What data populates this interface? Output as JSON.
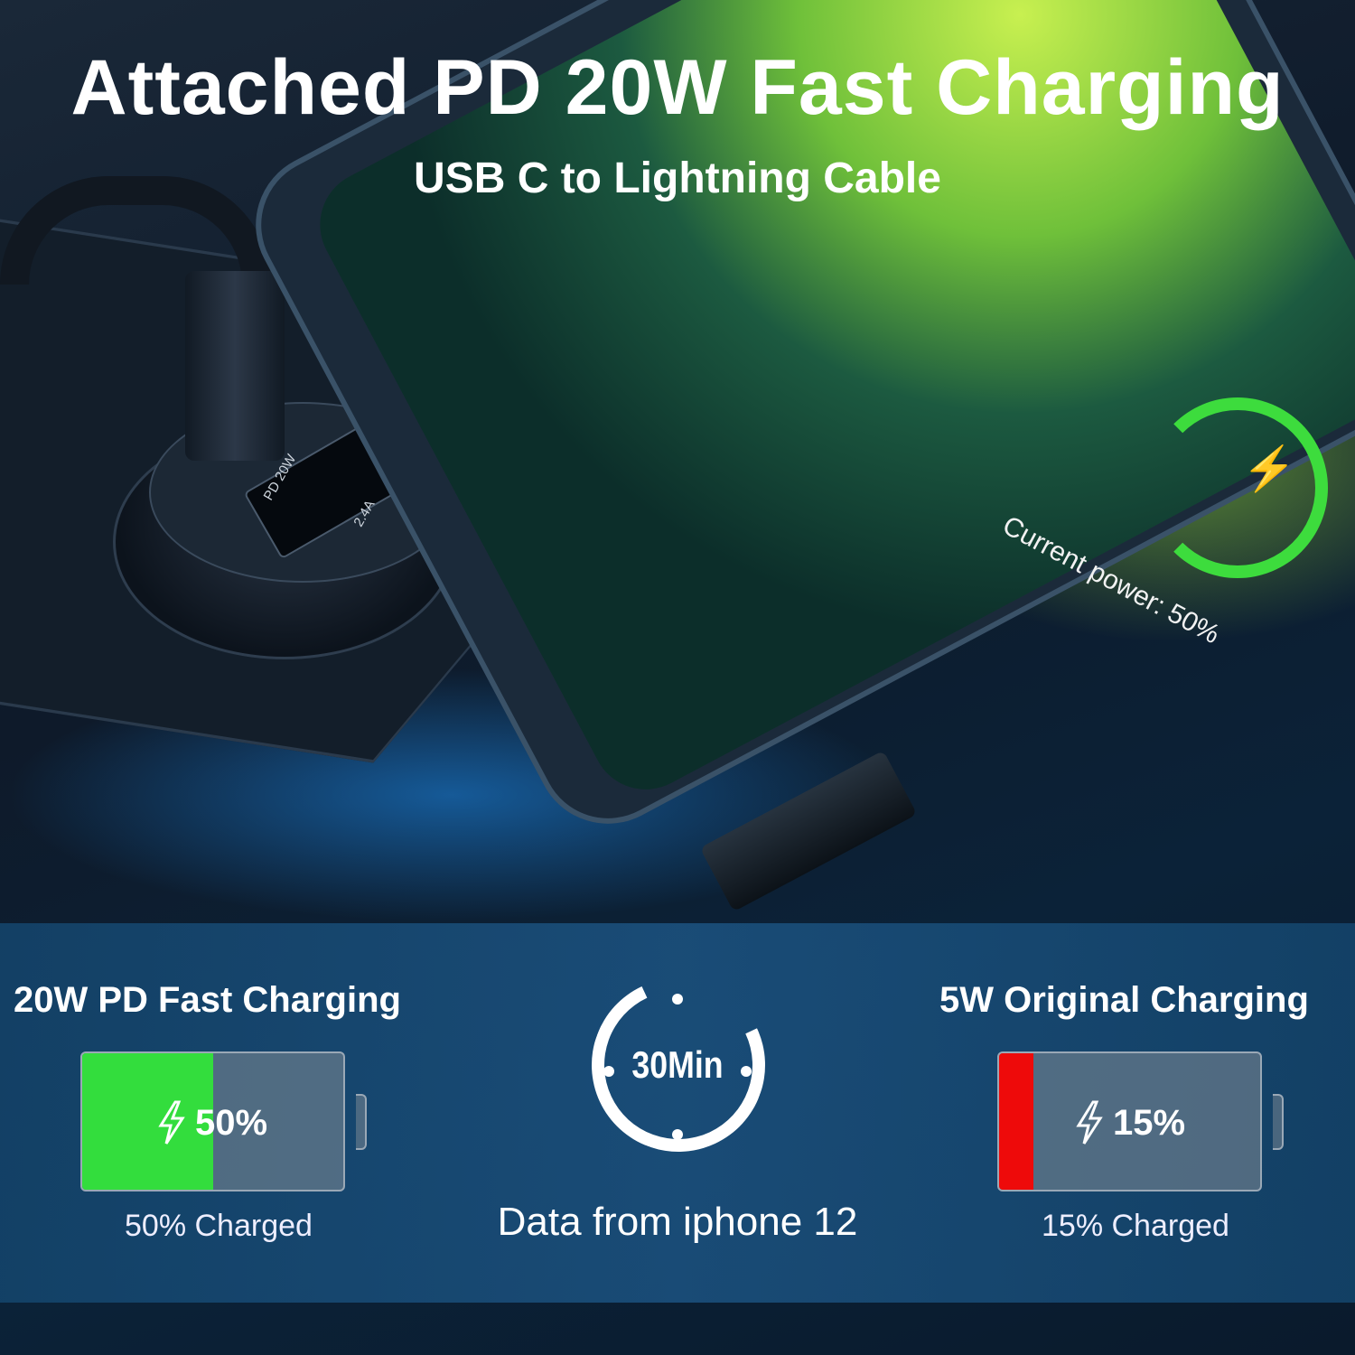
{
  "headline": "Attached PD 20W Fast Charging",
  "subheadline": "USB C to Lightning Cable",
  "charger": {
    "port_label_c": "PD 20W",
    "port_label_a": "2.4A"
  },
  "phone_screen": {
    "text": "Current power: 50%",
    "icon": "lightning-bolt-icon",
    "accent": "#3ddc3d"
  },
  "left": {
    "title": "20W PD Fast Charging",
    "percent_text": "50%",
    "level": 0.5,
    "caption": "50% Charged",
    "fill_color": "#33dd3d"
  },
  "center": {
    "timer_label": "30Min",
    "note": "Data from iphone 12",
    "icon": "stopwatch-icon"
  },
  "right": {
    "title": "5W Original Charging",
    "percent_text": "15%",
    "level": 0.15,
    "caption": "15% Charged",
    "fill_color": "#ee0a0a"
  }
}
